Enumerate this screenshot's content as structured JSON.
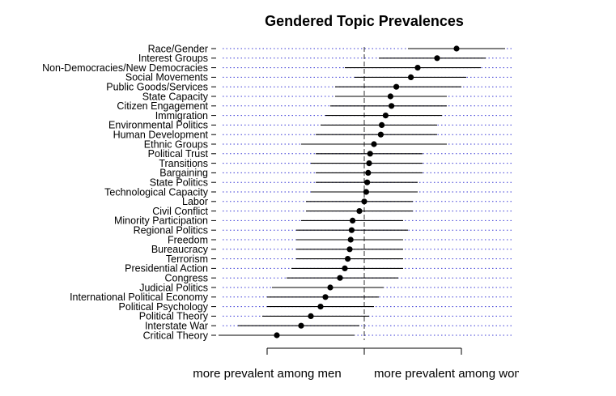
{
  "chart_data": {
    "type": "dot-interval",
    "title": "Gendered Topic Prevalences",
    "axis_labels": [
      "more prevalent among men",
      "more prevalent among women"
    ],
    "xlim": [
      -1.5,
      1.5
    ],
    "grid": "dotted horizontal guides",
    "reference_line": 0,
    "topics": [
      {
        "name": "Race/Gender",
        "estimate": 0.95,
        "low": 0.45,
        "high": 1.45
      },
      {
        "name": "Interest Groups",
        "estimate": 0.75,
        "low": 0.15,
        "high": 1.25
      },
      {
        "name": "Non-Democracies/New Democracies",
        "estimate": 0.55,
        "low": -0.2,
        "high": 1.2
      },
      {
        "name": "Social Movements",
        "estimate": 0.48,
        "low": -0.1,
        "high": 1.05
      },
      {
        "name": "Public Goods/Services",
        "estimate": 0.33,
        "low": -0.3,
        "high": 1.0
      },
      {
        "name": "State Capacity",
        "estimate": 0.27,
        "low": -0.3,
        "high": 0.85
      },
      {
        "name": "Citizen Engagement",
        "estimate": 0.28,
        "low": -0.35,
        "high": 0.85
      },
      {
        "name": "Immigration",
        "estimate": 0.22,
        "low": -0.4,
        "high": 0.8
      },
      {
        "name": "Environmental Politics",
        "estimate": 0.18,
        "low": -0.45,
        "high": 0.75
      },
      {
        "name": "Human Development",
        "estimate": 0.17,
        "low": -0.5,
        "high": 0.75
      },
      {
        "name": "Ethnic Groups",
        "estimate": 0.1,
        "low": -0.65,
        "high": 0.85
      },
      {
        "name": "Political Trust",
        "estimate": 0.06,
        "low": -0.5,
        "high": 0.6
      },
      {
        "name": "Transitions",
        "estimate": 0.05,
        "low": -0.55,
        "high": 0.6
      },
      {
        "name": "Bargaining",
        "estimate": 0.04,
        "low": -0.5,
        "high": 0.6
      },
      {
        "name": "State Politics",
        "estimate": 0.03,
        "low": -0.5,
        "high": 0.55
      },
      {
        "name": "Technological Capacity",
        "estimate": 0.02,
        "low": -0.55,
        "high": 0.55
      },
      {
        "name": "Labor",
        "estimate": 0.0,
        "low": -0.6,
        "high": 0.5
      },
      {
        "name": "Civil Conflict",
        "estimate": -0.05,
        "low": -0.6,
        "high": 0.5
      },
      {
        "name": "Minority Participation",
        "estimate": -0.12,
        "low": -0.65,
        "high": 0.4
      },
      {
        "name": "Regional Politics",
        "estimate": -0.13,
        "low": -0.7,
        "high": 0.45
      },
      {
        "name": "Freedom",
        "estimate": -0.14,
        "low": -0.7,
        "high": 0.4
      },
      {
        "name": "Bureaucracy",
        "estimate": -0.15,
        "low": -0.7,
        "high": 0.4
      },
      {
        "name": "Terrorism",
        "estimate": -0.17,
        "low": -0.7,
        "high": 0.4
      },
      {
        "name": "Presidential Action",
        "estimate": -0.2,
        "low": -0.75,
        "high": 0.4
      },
      {
        "name": "Congress",
        "estimate": -0.25,
        "low": -0.8,
        "high": 0.35
      },
      {
        "name": "Judicial Politics",
        "estimate": -0.35,
        "low": -0.95,
        "high": 0.2
      },
      {
        "name": "International Political Economy",
        "estimate": -0.4,
        "low": -1.0,
        "high": 0.15
      },
      {
        "name": "Political Psychology",
        "estimate": -0.45,
        "low": -1.0,
        "high": 0.1
      },
      {
        "name": "Political Theory",
        "estimate": -0.55,
        "low": -1.05,
        "high": 0.05
      },
      {
        "name": "Interstate War",
        "estimate": -0.65,
        "low": -1.3,
        "high": -0.05
      },
      {
        "name": "Critical Theory",
        "estimate": -0.9,
        "low": -1.5,
        "high": -0.1
      }
    ]
  }
}
